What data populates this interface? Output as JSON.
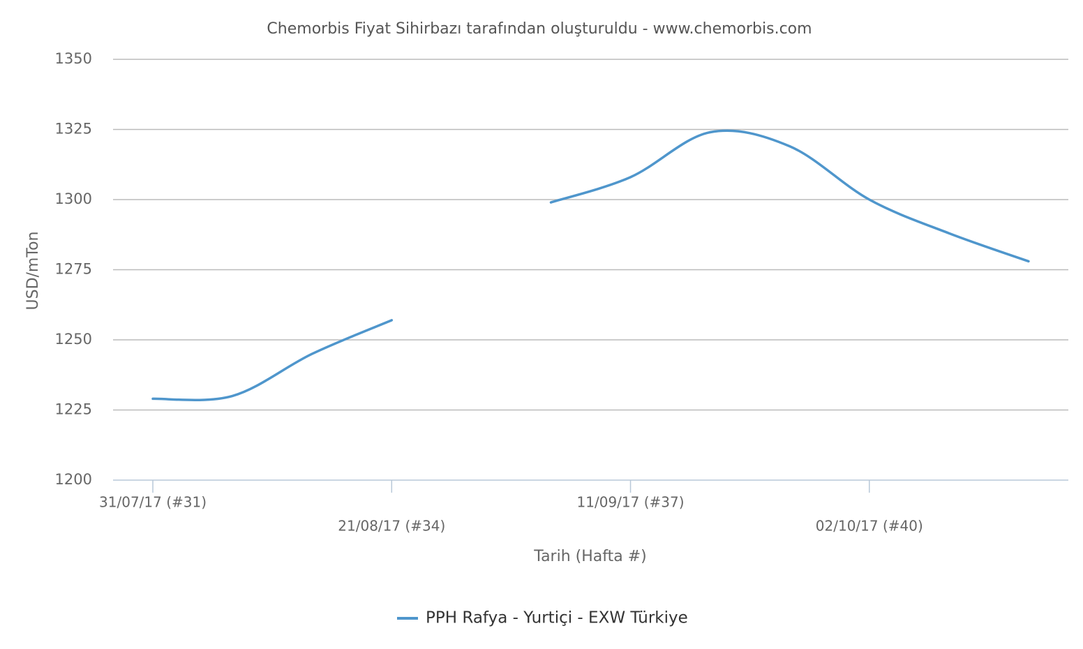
{
  "chart_data": {
    "type": "line",
    "title": "Chemorbis Fiyat Sihirbazı tarafından oluşturuldu - www.chemorbis.com",
    "x_label": "Tarih (Hafta #)",
    "y_label": "USD/mTon",
    "categories": [
      "31/07/17 (#31)",
      null,
      null,
      "21/08/17 (#34)",
      null,
      null,
      "11/09/17 (#37)",
      null,
      null,
      "02/10/17 (#40)",
      null,
      null
    ],
    "series": [
      {
        "name": "PPH Rafya - Yurtiçi - EXW Türkiye",
        "color": "#4f96cc",
        "values": [
          1229,
          1230,
          1245,
          1257,
          null,
          1299,
          1308,
          1324,
          1319,
          1300,
          1288,
          1278
        ]
      }
    ],
    "ylim": [
      1200,
      1350
    ],
    "yticks": [
      1200,
      1225,
      1250,
      1275,
      1300,
      1325,
      1350
    ],
    "grid": true,
    "legend": "bottom"
  }
}
